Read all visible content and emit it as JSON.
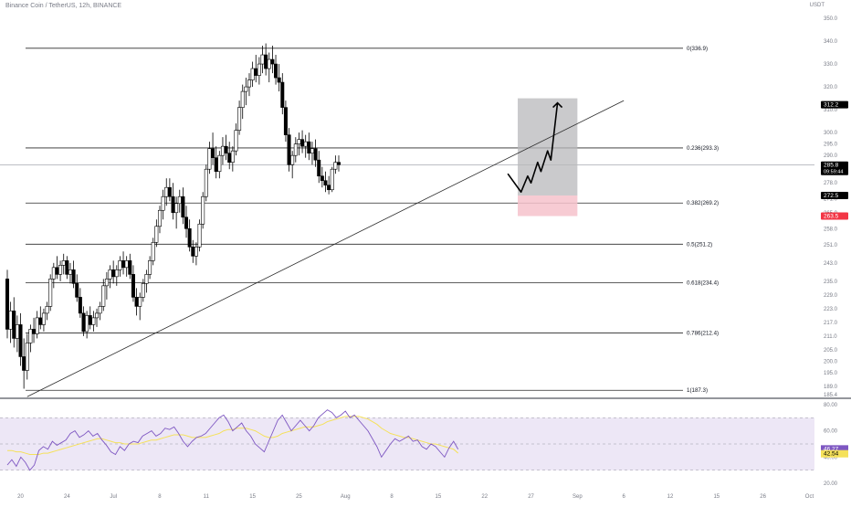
{
  "header": {
    "symbol_title": "Binance Coin / TetherUS, 12h, BINANCE",
    "currency": "USDT"
  },
  "colors": {
    "bull": "#ffffff",
    "bear": "#000000",
    "fib_line": "#2a2a2a",
    "trendline": "#2a2a2a",
    "target_box": "#b8b8bb",
    "stop_box": "#f6c2cb",
    "rsi_line": "#7e57c2",
    "rsi_ma": "#f5e15a",
    "rsi_band": "#ede7f6",
    "axis_text": "#787b86"
  },
  "chart_data": {
    "type": "candlestick",
    "symbol": "BNBUSDT",
    "interval": "12h",
    "price_axis": {
      "ticks": [
        "350.0",
        "340.0",
        "330.0",
        "320.0",
        "310.0",
        "300.0",
        "295.0",
        "290.0",
        "284.0",
        "278.0",
        "271.0",
        "265.0",
        "258.0",
        "251.0",
        "243.0",
        "235.0",
        "229.0",
        "223.0",
        "217.0",
        "211.0",
        "205.0",
        "200.0",
        "195.0",
        "189.0",
        "185.4"
      ],
      "labels": [
        {
          "value": 312.2,
          "text": "312.2",
          "bg": "#000000",
          "fg": "#ffffff"
        },
        {
          "value": 285.8,
          "text": "285.8",
          "sub": "09:59:44",
          "bg": "#000000",
          "fg": "#ffffff"
        },
        {
          "value": 272.5,
          "text": "272.5",
          "bg": "#000000",
          "fg": "#ffffff"
        },
        {
          "value": 263.5,
          "text": "263.5",
          "bg": "#f23645",
          "fg": "#ffffff"
        }
      ]
    },
    "time_axis": {
      "labels": [
        {
          "i": 4,
          "text": "20"
        },
        {
          "i": 18,
          "text": "24"
        },
        {
          "i": 32,
          "text": "Jul"
        },
        {
          "i": 46,
          "text": "8"
        },
        {
          "i": 60,
          "text": "11"
        },
        {
          "i": 74,
          "text": "15"
        },
        {
          "i": 88,
          "text": "25"
        },
        {
          "i": 102,
          "text": "Aug"
        },
        {
          "i": 116,
          "text": "8"
        },
        {
          "i": 130,
          "text": "15"
        },
        {
          "i": 144,
          "text": "22"
        },
        {
          "i": 158,
          "text": "27"
        },
        {
          "i": 172,
          "text": "Sep"
        },
        {
          "i": 186,
          "text": "6"
        },
        {
          "i": 200,
          "text": "12"
        },
        {
          "i": 214,
          "text": "15"
        },
        {
          "i": 228,
          "text": "26"
        },
        {
          "i": 242,
          "text": "Oct"
        }
      ]
    },
    "fib_levels": [
      {
        "value": 336.9,
        "label": "0(336.9)"
      },
      {
        "value": 293.3,
        "label": "0.236(293.3)"
      },
      {
        "value": 269.2,
        "label": "0.382(269.2)"
      },
      {
        "value": 251.2,
        "label": "0.5(251.2)"
      },
      {
        "value": 234.4,
        "label": "0.618(234.4)"
      },
      {
        "value": 212.4,
        "label": "0.786(212.4)"
      },
      {
        "value": 187.3,
        "label": "1(187.3)"
      }
    ],
    "trendline": {
      "from": {
        "i": 6,
        "v": 184.5
      },
      "to": {
        "i": 186,
        "v": 314.0
      }
    },
    "target_box": {
      "i0": 154,
      "i1": 172,
      "top": 315.0,
      "bottom": 272.5
    },
    "stop_box": {
      "i0": 154,
      "i1": 172,
      "top": 272.5,
      "bottom": 263.5
    },
    "projection_path": [
      {
        "i": 151,
        "v": 282
      },
      {
        "i": 155,
        "v": 274
      },
      {
        "i": 157,
        "v": 281
      },
      {
        "i": 158,
        "v": 278
      },
      {
        "i": 160,
        "v": 287
      },
      {
        "i": 161,
        "v": 283
      },
      {
        "i": 163,
        "v": 292
      },
      {
        "i": 164,
        "v": 288
      },
      {
        "i": 166,
        "v": 313
      }
    ],
    "candles": [
      {
        "o": 236,
        "h": 240,
        "l": 210,
        "c": 214
      },
      {
        "o": 214,
        "h": 226,
        "l": 208,
        "c": 222
      },
      {
        "o": 222,
        "h": 228,
        "l": 206,
        "c": 210
      },
      {
        "o": 210,
        "h": 220,
        "l": 204,
        "c": 216
      },
      {
        "o": 216,
        "h": 221,
        "l": 198,
        "c": 202
      },
      {
        "o": 202,
        "h": 210,
        "l": 188,
        "c": 196
      },
      {
        "o": 196,
        "h": 212,
        "l": 192,
        "c": 208
      },
      {
        "o": 208,
        "h": 216,
        "l": 204,
        "c": 214
      },
      {
        "o": 214,
        "h": 219,
        "l": 208,
        "c": 212
      },
      {
        "o": 212,
        "h": 222,
        "l": 210,
        "c": 219
      },
      {
        "o": 219,
        "h": 224,
        "l": 214,
        "c": 216
      },
      {
        "o": 216,
        "h": 223,
        "l": 213,
        "c": 221
      },
      {
        "o": 221,
        "h": 226,
        "l": 218,
        "c": 224
      },
      {
        "o": 224,
        "h": 238,
        "l": 222,
        "c": 236
      },
      {
        "o": 236,
        "h": 243,
        "l": 232,
        "c": 241
      },
      {
        "o": 241,
        "h": 246,
        "l": 236,
        "c": 238
      },
      {
        "o": 238,
        "h": 244,
        "l": 235,
        "c": 242
      },
      {
        "o": 242,
        "h": 247,
        "l": 238,
        "c": 244
      },
      {
        "o": 244,
        "h": 246,
        "l": 236,
        "c": 238
      },
      {
        "o": 238,
        "h": 243,
        "l": 234,
        "c": 240
      },
      {
        "o": 240,
        "h": 244,
        "l": 232,
        "c": 234
      },
      {
        "o": 234,
        "h": 238,
        "l": 226,
        "c": 228
      },
      {
        "o": 228,
        "h": 232,
        "l": 219,
        "c": 221
      },
      {
        "o": 221,
        "h": 224,
        "l": 211,
        "c": 213
      },
      {
        "o": 213,
        "h": 222,
        "l": 210,
        "c": 220
      },
      {
        "o": 220,
        "h": 224,
        "l": 214,
        "c": 216
      },
      {
        "o": 216,
        "h": 222,
        "l": 213,
        "c": 219
      },
      {
        "o": 219,
        "h": 223,
        "l": 215,
        "c": 221
      },
      {
        "o": 221,
        "h": 226,
        "l": 218,
        "c": 224
      },
      {
        "o": 224,
        "h": 236,
        "l": 222,
        "c": 233
      },
      {
        "o": 233,
        "h": 239,
        "l": 227,
        "c": 236
      },
      {
        "o": 236,
        "h": 242,
        "l": 232,
        "c": 240
      },
      {
        "o": 240,
        "h": 244,
        "l": 234,
        "c": 237
      },
      {
        "o": 237,
        "h": 242,
        "l": 233,
        "c": 240
      },
      {
        "o": 240,
        "h": 246,
        "l": 237,
        "c": 244
      },
      {
        "o": 244,
        "h": 248,
        "l": 238,
        "c": 241
      },
      {
        "o": 241,
        "h": 246,
        "l": 237,
        "c": 244
      },
      {
        "o": 244,
        "h": 247,
        "l": 236,
        "c": 238
      },
      {
        "o": 238,
        "h": 242,
        "l": 226,
        "c": 228
      },
      {
        "o": 228,
        "h": 232,
        "l": 220,
        "c": 224
      },
      {
        "o": 224,
        "h": 230,
        "l": 218,
        "c": 228
      },
      {
        "o": 228,
        "h": 236,
        "l": 226,
        "c": 234
      },
      {
        "o": 234,
        "h": 240,
        "l": 230,
        "c": 238
      },
      {
        "o": 238,
        "h": 246,
        "l": 236,
        "c": 244
      },
      {
        "o": 244,
        "h": 254,
        "l": 242,
        "c": 252
      },
      {
        "o": 252,
        "h": 262,
        "l": 250,
        "c": 259
      },
      {
        "o": 259,
        "h": 268,
        "l": 256,
        "c": 266
      },
      {
        "o": 266,
        "h": 275,
        "l": 262,
        "c": 272
      },
      {
        "o": 272,
        "h": 280,
        "l": 268,
        "c": 276
      },
      {
        "o": 276,
        "h": 280,
        "l": 270,
        "c": 272
      },
      {
        "o": 272,
        "h": 278,
        "l": 262,
        "c": 265
      },
      {
        "o": 265,
        "h": 272,
        "l": 258,
        "c": 269
      },
      {
        "o": 269,
        "h": 275,
        "l": 265,
        "c": 272
      },
      {
        "o": 272,
        "h": 276,
        "l": 260,
        "c": 263
      },
      {
        "o": 263,
        "h": 268,
        "l": 254,
        "c": 258
      },
      {
        "o": 258,
        "h": 262,
        "l": 248,
        "c": 250
      },
      {
        "o": 250,
        "h": 253,
        "l": 243,
        "c": 246
      },
      {
        "o": 246,
        "h": 252,
        "l": 242,
        "c": 250
      },
      {
        "o": 250,
        "h": 262,
        "l": 248,
        "c": 260
      },
      {
        "o": 260,
        "h": 274,
        "l": 258,
        "c": 272
      },
      {
        "o": 272,
        "h": 286,
        "l": 270,
        "c": 284
      },
      {
        "o": 284,
        "h": 296,
        "l": 282,
        "c": 293
      },
      {
        "o": 293,
        "h": 300,
        "l": 286,
        "c": 289
      },
      {
        "o": 289,
        "h": 294,
        "l": 280,
        "c": 283
      },
      {
        "o": 283,
        "h": 292,
        "l": 280,
        "c": 290
      },
      {
        "o": 290,
        "h": 298,
        "l": 286,
        "c": 294
      },
      {
        "o": 294,
        "h": 299,
        "l": 288,
        "c": 291
      },
      {
        "o": 291,
        "h": 296,
        "l": 284,
        "c": 287
      },
      {
        "o": 287,
        "h": 294,
        "l": 283,
        "c": 292
      },
      {
        "o": 292,
        "h": 304,
        "l": 290,
        "c": 301
      },
      {
        "o": 301,
        "h": 314,
        "l": 299,
        "c": 311
      },
      {
        "o": 311,
        "h": 321,
        "l": 306,
        "c": 318
      },
      {
        "o": 318,
        "h": 324,
        "l": 312,
        "c": 320
      },
      {
        "o": 320,
        "h": 326,
        "l": 316,
        "c": 323
      },
      {
        "o": 323,
        "h": 331,
        "l": 320,
        "c": 328
      },
      {
        "o": 328,
        "h": 334,
        "l": 322,
        "c": 325
      },
      {
        "o": 325,
        "h": 333,
        "l": 321,
        "c": 330
      },
      {
        "o": 330,
        "h": 338,
        "l": 326,
        "c": 334
      },
      {
        "o": 334,
        "h": 339,
        "l": 325,
        "c": 328
      },
      {
        "o": 328,
        "h": 335,
        "l": 322,
        "c": 332
      },
      {
        "o": 332,
        "h": 338,
        "l": 326,
        "c": 330
      },
      {
        "o": 330,
        "h": 334,
        "l": 321,
        "c": 324
      },
      {
        "o": 324,
        "h": 330,
        "l": 318,
        "c": 322
      },
      {
        "o": 322,
        "h": 326,
        "l": 308,
        "c": 311
      },
      {
        "o": 311,
        "h": 314,
        "l": 296,
        "c": 299
      },
      {
        "o": 299,
        "h": 302,
        "l": 283,
        "c": 286
      },
      {
        "o": 286,
        "h": 292,
        "l": 280,
        "c": 290
      },
      {
        "o": 290,
        "h": 298,
        "l": 287,
        "c": 295
      },
      {
        "o": 295,
        "h": 300,
        "l": 290,
        "c": 297
      },
      {
        "o": 297,
        "h": 301,
        "l": 291,
        "c": 294
      },
      {
        "o": 294,
        "h": 299,
        "l": 289,
        "c": 296
      },
      {
        "o": 296,
        "h": 300,
        "l": 288,
        "c": 291
      },
      {
        "o": 291,
        "h": 296,
        "l": 286,
        "c": 293
      },
      {
        "o": 293,
        "h": 297,
        "l": 285,
        "c": 288
      },
      {
        "o": 288,
        "h": 292,
        "l": 278,
        "c": 281
      },
      {
        "o": 281,
        "h": 285,
        "l": 276,
        "c": 279
      },
      {
        "o": 279,
        "h": 283,
        "l": 274,
        "c": 277
      },
      {
        "o": 277,
        "h": 281,
        "l": 273,
        "c": 275
      },
      {
        "o": 275,
        "h": 285,
        "l": 274,
        "c": 284
      },
      {
        "o": 284,
        "h": 290,
        "l": 282,
        "c": 287
      },
      {
        "o": 287,
        "h": 290,
        "l": 283,
        "c": 286
      }
    ],
    "rsi": {
      "length": 14,
      "levels": [
        70,
        50,
        30
      ],
      "ticks": [
        "80.00",
        "60.00",
        "40.00",
        "20.00"
      ],
      "current_rsi": 46.27,
      "current_ma": 42.54,
      "values": [
        34,
        38,
        33,
        40,
        36,
        30,
        34,
        45,
        48,
        46,
        52,
        49,
        51,
        53,
        58,
        60,
        55,
        57,
        60,
        56,
        58,
        53,
        49,
        44,
        42,
        48,
        45,
        50,
        52,
        51,
        56,
        58,
        60,
        56,
        58,
        62,
        61,
        63,
        58,
        52,
        48,
        52,
        55,
        56,
        58,
        62,
        66,
        70,
        72,
        67,
        60,
        63,
        66,
        60,
        56,
        50,
        47,
        44,
        52,
        60,
        68,
        72,
        66,
        60,
        64,
        68,
        64,
        60,
        64,
        70,
        73,
        76,
        74,
        70,
        72,
        75,
        70,
        72,
        68,
        64,
        60,
        54,
        48,
        40,
        45,
        50,
        54,
        52,
        54,
        56,
        52,
        53,
        48,
        46,
        50,
        48,
        44,
        40,
        47,
        52,
        46
      ],
      "ma": [
        45,
        45,
        44,
        44,
        43,
        42,
        42,
        42,
        43,
        43,
        44,
        45,
        46,
        47,
        48,
        49,
        50,
        51,
        52,
        53,
        54,
        54,
        53,
        52,
        51,
        51,
        50,
        50,
        50,
        50,
        51,
        52,
        53,
        53,
        54,
        55,
        56,
        57,
        57,
        57,
        56,
        55,
        55,
        55,
        55,
        56,
        57,
        58,
        60,
        61,
        61,
        62,
        62,
        62,
        61,
        60,
        58,
        56,
        55,
        55,
        56,
        58,
        59,
        60,
        61,
        62,
        63,
        63,
        63,
        64,
        65,
        67,
        68,
        69,
        70,
        71,
        71,
        71,
        71,
        70,
        69,
        67,
        65,
        62,
        60,
        58,
        57,
        56,
        55,
        55,
        54,
        53,
        52,
        51,
        50,
        50,
        49,
        48,
        47,
        46,
        43
      ]
    }
  }
}
